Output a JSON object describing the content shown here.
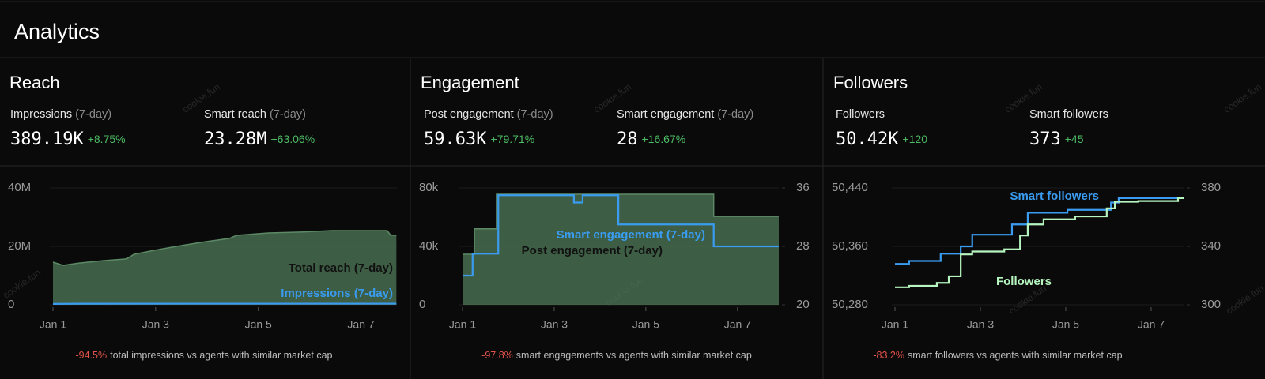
{
  "header": {
    "title": "Analytics"
  },
  "watermark": "cookie.fun",
  "panels": [
    {
      "title": "Reach",
      "stats": [
        {
          "label": "Impressions",
          "period": "(7-day)",
          "value": "389.19K",
          "change": "+8.75%"
        },
        {
          "label": "Smart reach",
          "period": "(7-day)",
          "value": "23.28M",
          "change": "+63.06%"
        }
      ],
      "chart": {
        "type": "line",
        "grid": true,
        "xlim": [
          1,
          7.7
        ],
        "xticks": [
          {
            "value": 1,
            "label": "Jan 1"
          },
          {
            "value": 3,
            "label": "Jan 3"
          },
          {
            "value": 5,
            "label": "Jan 5"
          },
          {
            "value": 7,
            "label": "Jan 7"
          }
        ],
        "ylim": [
          0,
          40000000
        ],
        "yticks": [
          0,
          {
            "value": 20000000,
            "label": "20M"
          },
          {
            "value": 40000000,
            "label": "40M"
          }
        ],
        "series": [
          {
            "name": "Total reach (7-day)",
            "color": "#4f7a58",
            "fill": true,
            "x": [
              1,
              1.2,
              1.51,
              1.97,
              2.43,
              2.58,
              3.05,
              3.51,
              3.97,
              4.43,
              4.58,
              5.2,
              5.82,
              6.43,
              7.51,
              7.58,
              7.69
            ],
            "values": [
              14600000,
              13500000,
              14300000,
              15100000,
              15700000,
              17300000,
              18900000,
              20300000,
              21600000,
              22700000,
              23800000,
              24600000,
              24900000,
              25400000,
              25400000,
              23800000,
              23800000
            ]
          },
          {
            "name": "Impressions (7-day)",
            "color": "#3a9cf0",
            "fill": false,
            "x": [
              1,
              1.5,
              7.69
            ],
            "values": [
              300000,
              380000,
              390000
            ]
          }
        ]
      },
      "footer": {
        "delta": "-94.5%",
        "text": "total impressions vs agents with similar market cap"
      }
    },
    {
      "title": "Engagement",
      "stats": [
        {
          "label": "Post engagement",
          "period": "(7-day)",
          "value": "59.63K",
          "change": "+79.71%"
        },
        {
          "label": "Smart engagement",
          "period": "(7-day)",
          "value": "28",
          "change": "+16.67%"
        }
      ],
      "chart": {
        "type": "line",
        "grid": true,
        "xlim": [
          1,
          7.9
        ],
        "xticks": [
          {
            "value": 1,
            "label": "Jan 1"
          },
          {
            "value": 3,
            "label": "Jan 3"
          },
          {
            "value": 5,
            "label": "Jan 5"
          },
          {
            "value": 7,
            "label": "Jan 7"
          }
        ],
        "ylim": [
          0,
          80000
        ],
        "yticks": [
          0,
          {
            "value": 40000,
            "label": "40k"
          },
          {
            "value": 80000,
            "label": "80k"
          }
        ],
        "y2lim": [
          20,
          36
        ],
        "y2ticks": [
          20,
          28,
          36
        ],
        "series": [
          {
            "name": "Post engagement (7-day)",
            "color": "#4f7a58",
            "fill": true,
            "x": [
              1,
              1.26,
              1.26,
              1.74,
              1.74,
              6.48,
              6.48,
              7.9
            ],
            "values": [
              34600,
              34600,
              52000,
              52000,
              75700,
              75700,
              60500,
              60500
            ]
          },
          {
            "name": "Smart engagement (7-day)",
            "color": "#3a9cf0",
            "fill": false,
            "axis": "y2",
            "x": [
              1,
              1.22,
              1.22,
              1.78,
              1.78,
              3.43,
              3.43,
              3.62,
              3.62,
              4.4,
              4.4,
              6.48,
              6.48,
              7.9
            ],
            "values": [
              24,
              24,
              27,
              27,
              35,
              35,
              34,
              34,
              35,
              35,
              31,
              31,
              28,
              28
            ]
          }
        ]
      },
      "footer": {
        "delta": "-97.8%",
        "text": "smart engagements vs agents with similar market cap"
      }
    },
    {
      "title": "Followers",
      "stats": [
        {
          "label": "Followers",
          "value": "50.42K",
          "change": "+120"
        },
        {
          "label": "Smart followers",
          "value": "373",
          "change": "+45"
        }
      ],
      "chart": {
        "type": "line",
        "grid": true,
        "xlim": [
          1,
          7.76
        ],
        "xticks": [
          {
            "value": 1,
            "label": "Jan 1"
          },
          {
            "value": 3,
            "label": "Jan 3"
          },
          {
            "value": 5,
            "label": "Jan 5"
          },
          {
            "value": 7,
            "label": "Jan 7"
          }
        ],
        "ylim": [
          50280,
          50440
        ],
        "yticks": [
          {
            "value": 50280,
            "label": "50,280"
          },
          {
            "value": 50360,
            "label": "50,360"
          },
          {
            "value": 50440,
            "label": "50,440"
          }
        ],
        "y2lim": [
          300,
          380
        ],
        "y2ticks": [
          300,
          340,
          380
        ],
        "series": [
          {
            "name": "Smart followers",
            "color": "#3a9cf0",
            "fill": false,
            "axis": "y2",
            "x": [
              1,
              1.33,
              1.33,
              2.07,
              2.07,
              2.54,
              2.54,
              2.81,
              2.81,
              3.74,
              3.74,
              4.11,
              4.11,
              5.04,
              5.04,
              6.06,
              6.06,
              6.24,
              6.24,
              7.76
            ],
            "values": [
              328,
              328,
              330,
              330,
              335,
              335,
              340,
              340,
              348,
              348,
              355,
              355,
              363,
              363,
              365,
              365,
              370,
              370,
              373,
              373
            ]
          },
          {
            "name": "Followers",
            "color": "#b6f5bf",
            "fill": false,
            "x": [
              1,
              1.33,
              1.33,
              1.98,
              1.98,
              2.26,
              2.26,
              2.54,
              2.54,
              2.81,
              2.81,
              3.56,
              3.56,
              3.93,
              3.93,
              4.11,
              4.11,
              4.48,
              4.48,
              5.22,
              5.22,
              5.96,
              5.96,
              6.15,
              6.15,
              6.7,
              6.7,
              7.63,
              7.63,
              7.76
            ],
            "values": [
              50304,
              50304,
              50306,
              50306,
              50310,
              50310,
              50319,
              50319,
              50349,
              50349,
              50353,
              50353,
              50356,
              50356,
              50375,
              50375,
              50390,
              50390,
              50397,
              50397,
              50401,
              50401,
              50412,
              50412,
              50421,
              50421,
              50422,
              50422,
              50426,
              50426
            ]
          }
        ]
      },
      "footer": {
        "delta": "-83.2%",
        "text": "smart followers vs agents with similar market cap"
      }
    }
  ]
}
